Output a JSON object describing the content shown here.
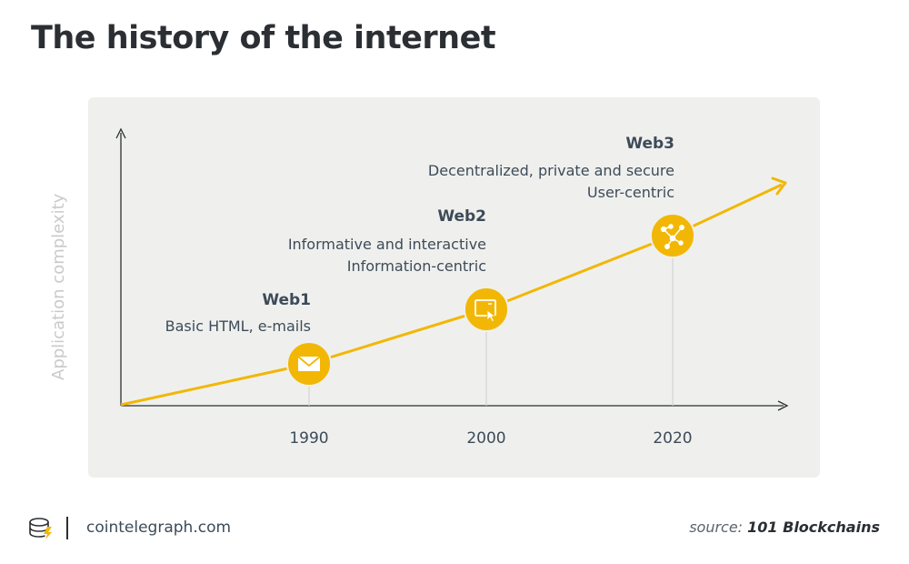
{
  "title": "The history of the internet",
  "y_axis_label": "Application complexity",
  "eras": [
    {
      "name": "Web1",
      "lines": [
        "Basic HTML, e-mails"
      ],
      "year": "1990",
      "icon": "envelope-icon"
    },
    {
      "name": "Web2",
      "lines": [
        "Informative and interactive",
        "Information-centric"
      ],
      "year": "2000",
      "icon": "browser-cursor-icon"
    },
    {
      "name": "Web3",
      "lines": [
        "Decentralized, private and secure",
        "User-centric"
      ],
      "year": "2020",
      "icon": "network-nodes-icon"
    }
  ],
  "footer": {
    "site": "cointelegraph.com",
    "source_prefix": "source:",
    "source_name": "101 Blockchains"
  },
  "colors": {
    "accent": "#f2b705",
    "panel": "#eff0ee",
    "text": "#3d4b58",
    "axis": "#2b2f33"
  }
}
